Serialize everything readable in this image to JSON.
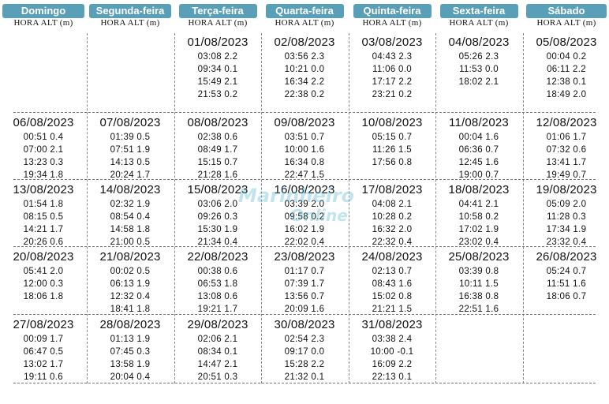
{
  "days": [
    "Domingo",
    "Segunda-feira",
    "Terça-feira",
    "Quarta-feira",
    "Quinta-feira",
    "Sexta-feira",
    "Sábado"
  ],
  "subheader": "HORA ALT (m)",
  "watermark": "Marinheiro Online",
  "weeks": [
    [
      null,
      null,
      {
        "date": "01/08/2023",
        "tides": [
          "03:08 2.2",
          "09:34 0.1",
          "15:49 2.1",
          "21:53 0.2"
        ]
      },
      {
        "date": "02/08/2023",
        "tides": [
          "03:56 2.3",
          "10:21 0.0",
          "16:34 2.2",
          "22:38 0.2"
        ]
      },
      {
        "date": "03/08/2023",
        "tides": [
          "04:43 2.3",
          "11:06 0.0",
          "17:17 2.2",
          "23:21 0.2"
        ]
      },
      {
        "date": "04/08/2023",
        "tides": [
          "05:26 2.3",
          "11:53 0.0",
          "18:02 2.1"
        ]
      },
      {
        "date": "05/08/2023",
        "tides": [
          "00:04 0.2",
          "06:11 2.2",
          "12:38 0.1",
          "18:49 2.0"
        ]
      }
    ],
    [
      {
        "date": "06/08/2023",
        "tides": [
          "00:51 0.4",
          "07:00 2.1",
          "13:23 0.3",
          "19:34 1.8"
        ]
      },
      {
        "date": "07/08/2023",
        "tides": [
          "01:39 0.5",
          "07:51 1.9",
          "14:13 0.5",
          "20:24 1.7"
        ]
      },
      {
        "date": "08/08/2023",
        "tides": [
          "02:38 0.6",
          "08:49 1.7",
          "15:15 0.7",
          "21:28 1.6"
        ]
      },
      {
        "date": "09/08/2023",
        "tides": [
          "03:51 0.7",
          "10:00 1.6",
          "16:34 0.8",
          "22:47 1.5"
        ]
      },
      {
        "date": "10/08/2023",
        "tides": [
          "05:15 0.7",
          "11:26 1.5",
          "17:56 0.8"
        ]
      },
      {
        "date": "11/08/2023",
        "tides": [
          "00:04 1.6",
          "06:36 0.7",
          "12:45 1.6",
          "19:00 0.7"
        ]
      },
      {
        "date": "12/08/2023",
        "tides": [
          "01:06 1.7",
          "07:32 0.6",
          "13:41 1.7",
          "19:49 0.7"
        ]
      }
    ],
    [
      {
        "date": "13/08/2023",
        "tides": [
          "01:54 1.8",
          "08:15 0.5",
          "14:21 1.7",
          "20:26 0.6"
        ]
      },
      {
        "date": "14/08/2023",
        "tides": [
          "02:32 1.9",
          "08:54 0.4",
          "14:58 1.8",
          "21:00 0.5"
        ]
      },
      {
        "date": "15/08/2023",
        "tides": [
          "03:06 2.0",
          "09:26 0.3",
          "15:30 1.9",
          "21:34 0.4"
        ]
      },
      {
        "date": "16/08/2023",
        "tides": [
          "03:39 2.0",
          "09:58 0.2",
          "16:02 1.9",
          "22:02 0.4"
        ]
      },
      {
        "date": "17/08/2023",
        "tides": [
          "04:08 2.1",
          "10:28 0.2",
          "16:32 2.0",
          "22:32 0.4"
        ]
      },
      {
        "date": "18/08/2023",
        "tides": [
          "04:41 2.1",
          "10:58 0.2",
          "17:02 1.9",
          "23:02 0.4"
        ]
      },
      {
        "date": "19/08/2023",
        "tides": [
          "05:09 2.0",
          "11:28 0.3",
          "17:34 1.9",
          "23:32 0.4"
        ]
      }
    ],
    [
      {
        "date": "20/08/2023",
        "tides": [
          "05:41 2.0",
          "12:00 0.3",
          "18:06 1.8"
        ]
      },
      {
        "date": "21/08/2023",
        "tides": [
          "00:02 0.5",
          "06:13 1.9",
          "12:32 0.4",
          "18:41 1.8"
        ]
      },
      {
        "date": "22/08/2023",
        "tides": [
          "00:38 0.6",
          "06:53 1.8",
          "13:08 0.6",
          "19:21 1.7"
        ]
      },
      {
        "date": "23/08/2023",
        "tides": [
          "01:17 0.7",
          "07:39 1.7",
          "13:56 0.7",
          "20:09 1.6"
        ]
      },
      {
        "date": "24/08/2023",
        "tides": [
          "02:13 0.7",
          "08:43 1.6",
          "15:02 0.8",
          "21:21 1.5"
        ]
      },
      {
        "date": "25/08/2023",
        "tides": [
          "03:39 0.8",
          "10:11 1.5",
          "16:38 0.8",
          "22:51 1.6"
        ]
      },
      {
        "date": "26/08/2023",
        "tides": [
          "05:24 0.7",
          "11:51 1.6",
          "18:06 0.7"
        ]
      }
    ],
    [
      {
        "date": "27/08/2023",
        "tides": [
          "00:09 1.7",
          "06:47 0.5",
          "13:02 1.7",
          "19:11 0.6"
        ]
      },
      {
        "date": "28/08/2023",
        "tides": [
          "01:13 1.9",
          "07:45 0.3",
          "13:58 1.9",
          "20:04 0.4"
        ]
      },
      {
        "date": "29/08/2023",
        "tides": [
          "02:06 2.1",
          "08:34 0.1",
          "14:47 2.1",
          "20:51 0.3"
        ]
      },
      {
        "date": "30/08/2023",
        "tides": [
          "02:54 2.3",
          "09:17 0.0",
          "15:28 2.2",
          "21:32 0.1"
        ]
      },
      {
        "date": "31/08/2023",
        "tides": [
          "03:38 2.4",
          "10:00 -0.1",
          "16:09 2.2",
          "22:13 0.1"
        ]
      },
      null,
      null
    ]
  ],
  "colors": {
    "header_pill": "#5a9fb8",
    "watermark": "#4fb3cf"
  }
}
